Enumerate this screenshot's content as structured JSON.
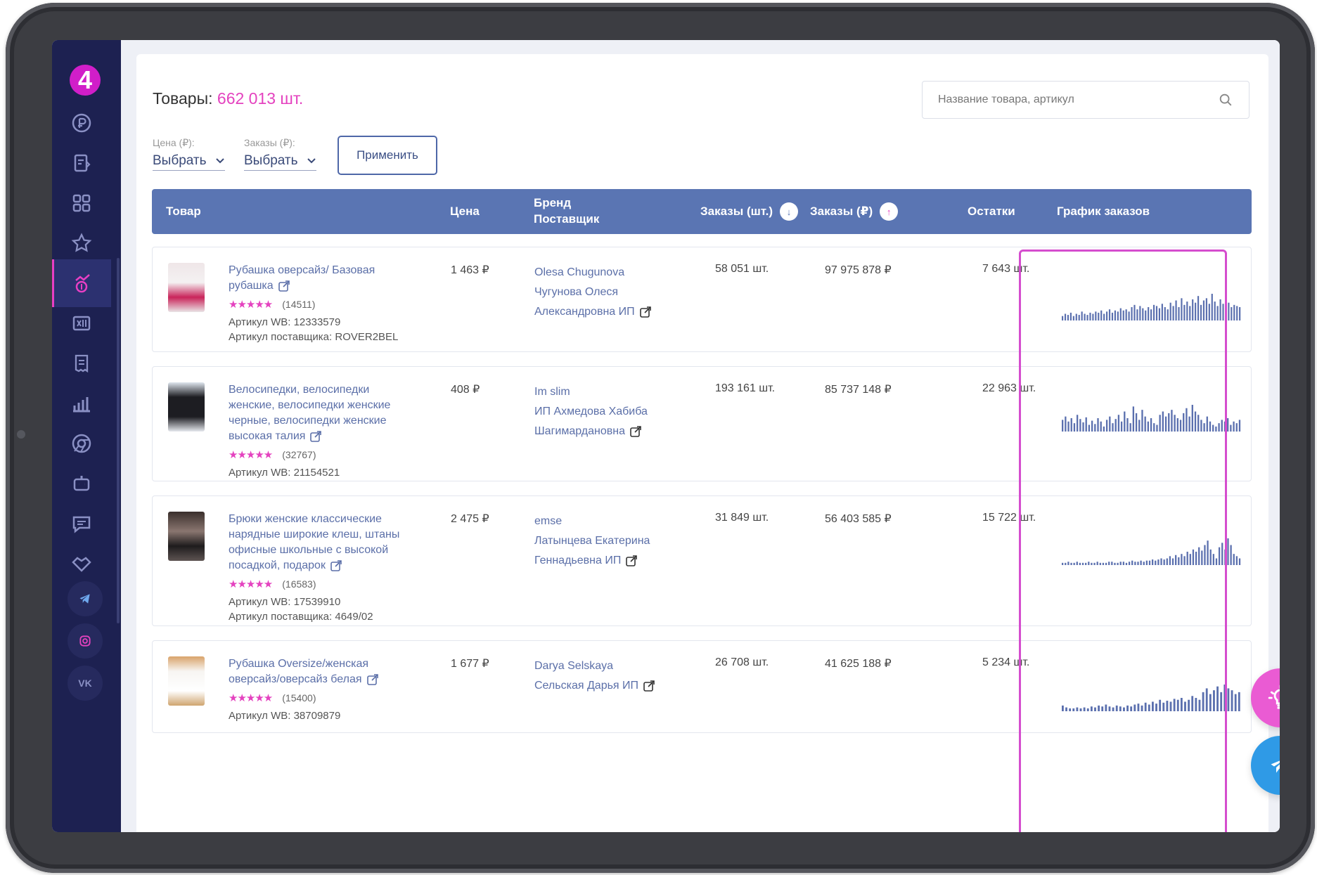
{
  "header": {
    "title_label": "Товары:",
    "title_count": "662 013 шт."
  },
  "search": {
    "placeholder": "Название товара, артикул"
  },
  "filters": [
    {
      "label": "Цена (₽):",
      "value": "Выбрать"
    },
    {
      "label": "Заказы (₽):",
      "value": "Выбрать"
    }
  ],
  "apply_label": "Применить",
  "table": {
    "columns": {
      "product": "Товар",
      "price": "Цена",
      "brand_line1": "Бренд",
      "brand_line2": "Поставщик",
      "orders_qty": "Заказы (шт.)",
      "orders_rub": "Заказы (₽)",
      "stock": "Остатки",
      "chart": "График заказов"
    },
    "rows": [
      {
        "name_lines": [
          "Рубашка оверсайз/ Базовая",
          "рубашка"
        ],
        "rating_count": "(14511)",
        "article_wb": "Артикул WB: 12333579",
        "article_supplier": "Артикул поставщика: ROVER2BEL",
        "price": "1 463 ₽",
        "brand_lines": [
          "Olesa Chugunova",
          "Чугунова Олеся",
          "Александровна ИП"
        ],
        "orders_qty": "58 051 шт.",
        "orders_rub": "97 975 878 ₽",
        "stock": "7 643 шт.",
        "spark": [
          4,
          6,
          5,
          7,
          4,
          6,
          5,
          8,
          6,
          5,
          7,
          6,
          8,
          7,
          9,
          6,
          8,
          10,
          7,
          9,
          8,
          11,
          9,
          10,
          8,
          12,
          14,
          10,
          13,
          11,
          9,
          12,
          10,
          14,
          13,
          11,
          15,
          12,
          10,
          16,
          13,
          18,
          12,
          20,
          14,
          17,
          13,
          19,
          16,
          22,
          14,
          18,
          20,
          15,
          24,
          17,
          13,
          19,
          15,
          14,
          16,
          12,
          14,
          13,
          12
        ]
      },
      {
        "name_lines": [
          "Велосипедки, велосипедки",
          "женские, велосипедки женские",
          "черные, велосипедки женские",
          "высокая талия"
        ],
        "rating_count": "(32767)",
        "article_wb": "Артикул WB: 21154521",
        "article_supplier": "",
        "price": "408 ₽",
        "brand_lines": [
          "Im slim",
          "ИП Ахмедова Хабиба",
          "Шагимардановна"
        ],
        "orders_qty": "193 161 шт.",
        "orders_rub": "85 737 148 ₽",
        "stock": "22 963 шт.",
        "spark": [
          14,
          18,
          12,
          16,
          10,
          20,
          15,
          11,
          17,
          8,
          13,
          9,
          16,
          12,
          6,
          14,
          18,
          10,
          15,
          20,
          12,
          24,
          16,
          10,
          30,
          22,
          14,
          26,
          18,
          12,
          16,
          10,
          8,
          20,
          24,
          18,
          22,
          26,
          20,
          16,
          14,
          22,
          28,
          18,
          32,
          24,
          20,
          14,
          10,
          18,
          12,
          8,
          6,
          10,
          14,
          12,
          16,
          8,
          12,
          10,
          14
        ]
      },
      {
        "name_lines": [
          "Брюки женские классические",
          "нарядные широкие клеш, штаны",
          "офисные школьные с высокой",
          "посадкой, подарок"
        ],
        "rating_count": "(16583)",
        "article_wb": "Артикул WB: 17539910",
        "article_supplier": "Артикул поставщика: 4649/02",
        "price": "2 475 ₽",
        "brand_lines": [
          "emse",
          "Латынцева Екатерина",
          "Геннадьевна ИП"
        ],
        "orders_qty": "31 849 шт.",
        "orders_rub": "56 403 585 ₽",
        "stock": "15 722 шт.",
        "spark": [
          2,
          2,
          3,
          2,
          2,
          3,
          2,
          2,
          2,
          3,
          2,
          2,
          3,
          2,
          2,
          2,
          3,
          3,
          2,
          2,
          3,
          3,
          2,
          3,
          4,
          3,
          3,
          4,
          3,
          4,
          4,
          5,
          4,
          5,
          6,
          5,
          6,
          8,
          6,
          9,
          7,
          10,
          8,
          12,
          10,
          14,
          12,
          16,
          13,
          18,
          22,
          14,
          10,
          6,
          16,
          20,
          14,
          24,
          18,
          10,
          8,
          6
        ]
      },
      {
        "name_lines": [
          "Рубашка Oversize/женская",
          "оверсайз/оверсайз белая"
        ],
        "rating_count": "(15400)",
        "article_wb": "Артикул WB: 38709879",
        "article_supplier": "",
        "price": "1 677 ₽",
        "brand_lines": [
          "Darya Selskaya",
          "Сельская Дарья ИП"
        ],
        "orders_qty": "26 708 шт.",
        "orders_rub": "41 625 188 ₽",
        "stock": "5 234 шт.",
        "spark": [
          6,
          4,
          3,
          3,
          4,
          3,
          4,
          3,
          5,
          4,
          6,
          5,
          7,
          5,
          4,
          6,
          5,
          4,
          6,
          5,
          7,
          8,
          6,
          9,
          7,
          10,
          8,
          12,
          9,
          11,
          10,
          13,
          12,
          14,
          10,
          12,
          16,
          14,
          12,
          20,
          24,
          18,
          22,
          26,
          20,
          28,
          24,
          22,
          18,
          20
        ]
      }
    ]
  },
  "colors": {
    "sidebar": "#1d2151",
    "accent_pink": "#e442bf",
    "header_blue": "#5a75b3",
    "spark_bar": "#5a6fae",
    "telegram": "#2f9ae6"
  }
}
